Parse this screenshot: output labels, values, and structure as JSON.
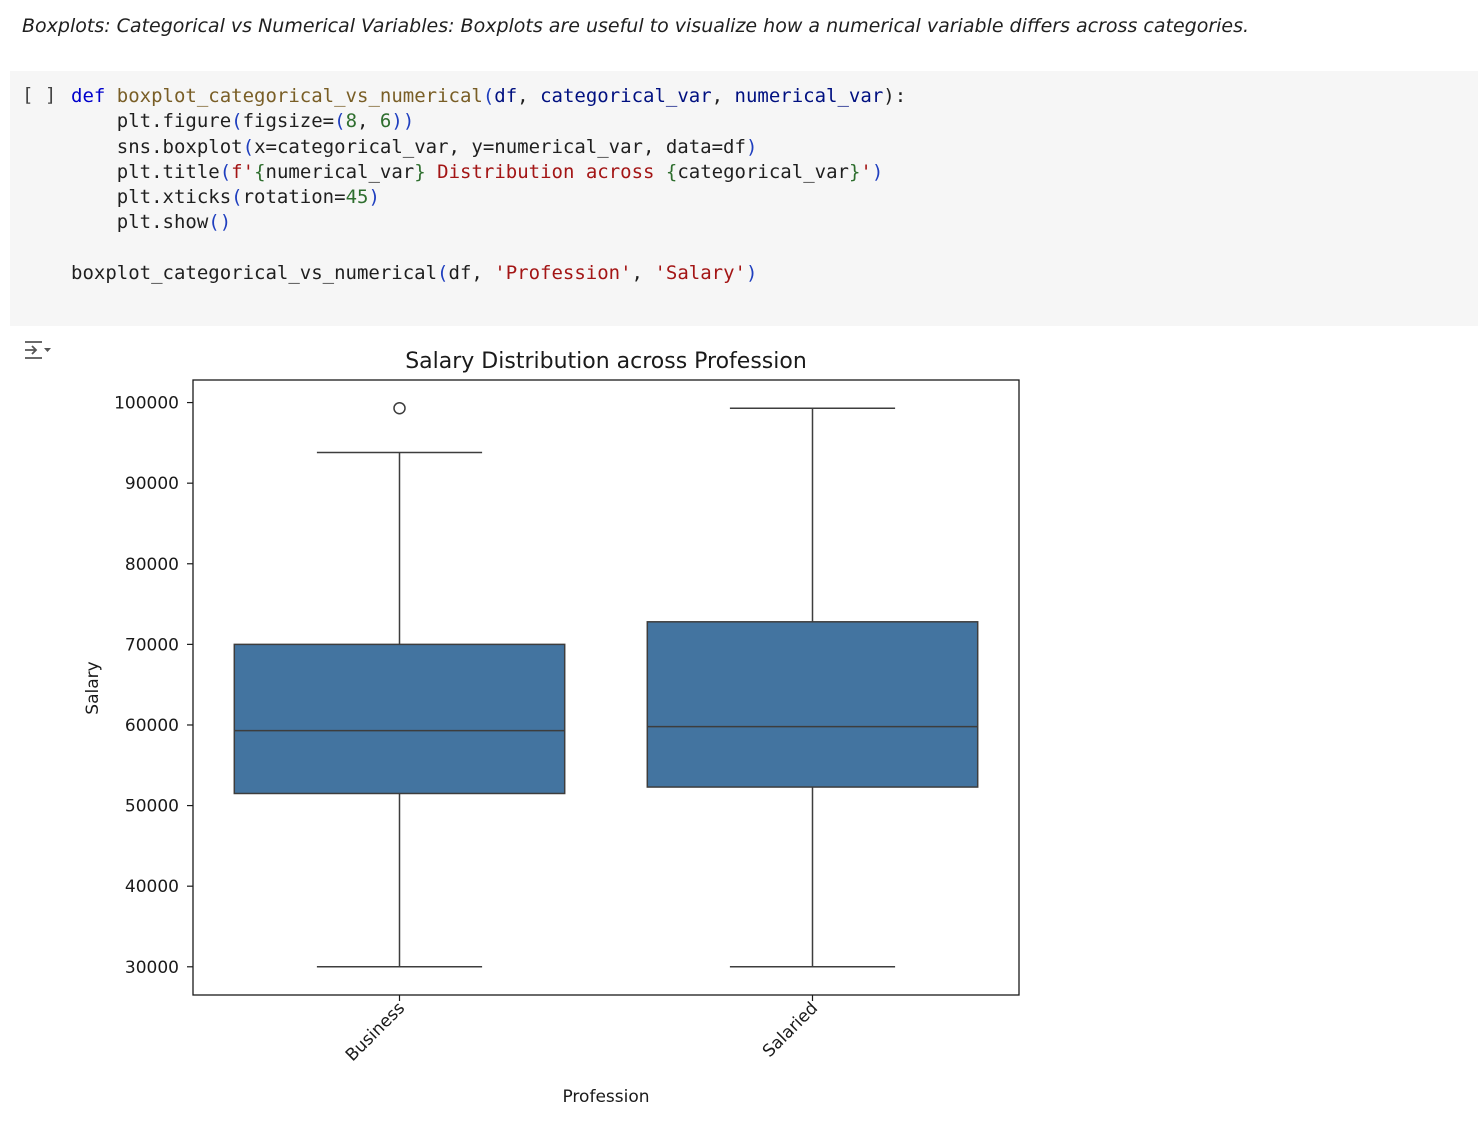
{
  "markdown": {
    "text": "Boxplots: Categorical vs Numerical Variables: Boxplots are useful to visualize how a numerical variable differs across categories."
  },
  "code_cell": {
    "run_label": "[ ]",
    "tokens": {
      "def": "def",
      "func_name": "boxplot_categorical_vs_numerical",
      "paren_open": "(",
      "param_df": "df",
      "comma1": ", ",
      "param_cat": "categorical_var",
      "comma2": ", ",
      "param_num": "numerical_var",
      "sig_end": "):",
      "l2_a": "plt.figure",
      "l2_b": "(",
      "l2_c": "figsize=",
      "l2_d": "(",
      "l2_e": "8",
      "l2_f": ", ",
      "l2_g": "6",
      "l2_h": "))",
      "l3_a": "sns.boxplot",
      "l3_b": "(",
      "l3_c": "x=categorical_var, y=numerical_var, data=df",
      "l3_d": ")",
      "l4_a": "plt.title",
      "l4_b": "(",
      "l4_c": "f'",
      "l4_d": "{",
      "l4_e": "numerical_var",
      "l4_f": "}",
      "l4_g": " Distribution across ",
      "l4_h": "{",
      "l4_i": "categorical_var",
      "l4_j": "}",
      "l4_k": "'",
      "l4_l": ")",
      "l5_a": "plt.xticks",
      "l5_b": "(",
      "l5_c": "rotation=",
      "l5_d": "45",
      "l5_e": ")",
      "l6_a": "plt.show",
      "l6_b": "()",
      "l8_a": "boxplot_categorical_vs_numerical",
      "l8_b": "(",
      "l8_c": "df, ",
      "l8_d": "'Profession'",
      "l8_e": ", ",
      "l8_f": "'Salary'",
      "l8_g": ")"
    }
  },
  "output": {
    "icon": "output-toggle-icon"
  },
  "colors": {
    "box_fill": "#4374a0",
    "box_edge": "#3d3d3d",
    "axis": "#1a1a1a"
  },
  "chart_data": {
    "type": "boxplot",
    "title": "Salary Distribution across Profession",
    "xlabel": "Profession",
    "ylabel": "Salary",
    "categories": [
      "Business",
      "Salaried"
    ],
    "boxes": [
      {
        "category": "Business",
        "whisker_low": 30000,
        "q1": 51500,
        "median": 59300,
        "q3": 70000,
        "whisker_high": 93800,
        "outliers": [
          99300
        ]
      },
      {
        "category": "Salaried",
        "whisker_low": 30000,
        "q1": 52300,
        "median": 59800,
        "q3": 72800,
        "whisker_high": 99300,
        "outliers": []
      }
    ],
    "yticks": [
      30000,
      40000,
      50000,
      60000,
      70000,
      80000,
      90000,
      100000
    ],
    "ytick_labels": [
      "30000",
      "40000",
      "50000",
      "60000",
      "70000",
      "80000",
      "90000",
      "100000"
    ],
    "ylim": [
      26500,
      102800
    ],
    "xtick_rotation": 45,
    "grid": false
  }
}
